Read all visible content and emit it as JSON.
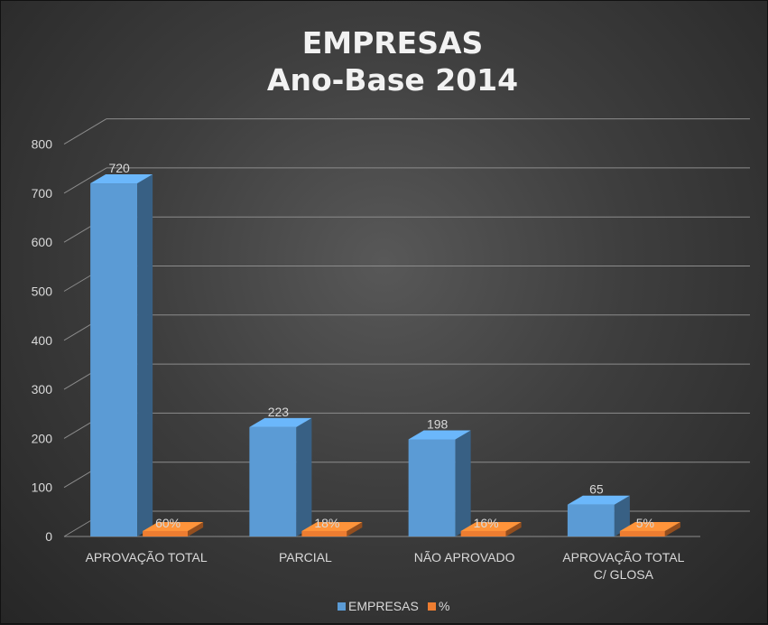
{
  "chart_data": {
    "type": "bar",
    "title_lines": [
      "EMPRESAS",
      "Ano-Base 2014"
    ],
    "categories": [
      [
        "APROVAÇÃO TOTAL"
      ],
      [
        "PARCIAL"
      ],
      [
        "NÃO APROVADO"
      ],
      [
        "APROVAÇÃO TOTAL",
        "C/ GLOSA"
      ]
    ],
    "series": [
      {
        "name": "EMPRESAS",
        "values": [
          720,
          223,
          198,
          65
        ],
        "labels": [
          "720",
          "223",
          "198",
          "65"
        ],
        "color": "#5b9bd5"
      },
      {
        "name": "%",
        "values": [
          0.6,
          0.18,
          0.16,
          0.05
        ],
        "labels": [
          "60%",
          "18%",
          "16%",
          "5%"
        ],
        "color": "#ed7d31"
      }
    ],
    "y_ticks": [
      "0",
      "100",
      "200",
      "300",
      "400",
      "500",
      "600",
      "700",
      "800"
    ],
    "ylim": [
      0,
      800
    ],
    "grid": true,
    "legend_position": "bottom",
    "style": "3d-column"
  }
}
